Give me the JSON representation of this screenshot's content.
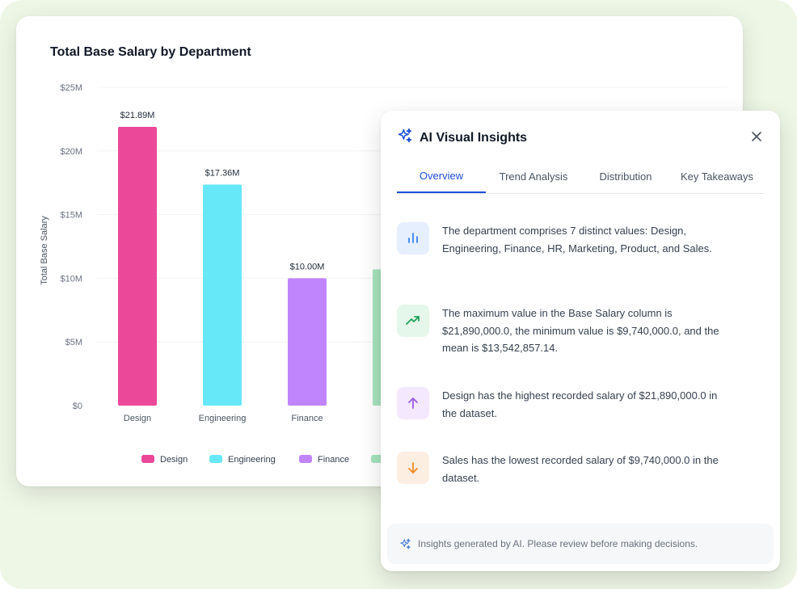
{
  "colors": {
    "design": "#ec4899",
    "engineering": "#67e8f9",
    "finance": "#c084fc",
    "hr": "#a7e3bd",
    "accent": "#1d4ed8"
  },
  "chart_data": {
    "type": "bar",
    "title": "Total Base Salary by Department",
    "xlabel": "",
    "ylabel": "Total Base Salary",
    "ylim": [
      0,
      25
    ],
    "y_ticks": [
      "$0",
      "$5M",
      "$10M",
      "$15M",
      "$20M",
      "$25M"
    ],
    "y_tick_values": [
      0,
      5,
      10,
      15,
      20,
      25
    ],
    "categories": [
      "Design",
      "Engineering",
      "Finance"
    ],
    "values": [
      21.89,
      17.36,
      10.0
    ],
    "data_labels": [
      "$21.89M",
      "$17.36M",
      "$10.00M"
    ],
    "partial_bar_value": 10.7,
    "legend": [
      "Design",
      "Engineering",
      "Finance"
    ],
    "legend_position": "bottom",
    "grid": true
  },
  "panel": {
    "title": "AI Visual Insights",
    "icon": "sparkles-icon",
    "close_icon": "close-icon",
    "tabs": [
      {
        "label": "Overview",
        "active": true
      },
      {
        "label": "Trend Analysis",
        "active": false
      },
      {
        "label": "Distribution",
        "active": false
      },
      {
        "label": "Key Takeaways",
        "active": false
      }
    ],
    "insights": [
      {
        "icon": "bar-chart-icon",
        "text": "The department comprises 7 distinct values: Design, Engineering, Finance, HR, Marketing, Product, and Sales."
      },
      {
        "icon": "trending-up-icon",
        "text": "The maximum value in the Base Salary column is $21,890,000.0, the minimum value is $9,740,000.0, and the mean is $13,542,857.14."
      },
      {
        "icon": "arrow-up-icon",
        "text": "Design has the highest recorded salary of $21,890,000.0 in the dataset."
      },
      {
        "icon": "arrow-down-icon",
        "text": "Sales has the lowest recorded salary of $9,740,000.0 in the dataset."
      }
    ],
    "footer": "Insights generated by AI. Please review before making decisions."
  }
}
